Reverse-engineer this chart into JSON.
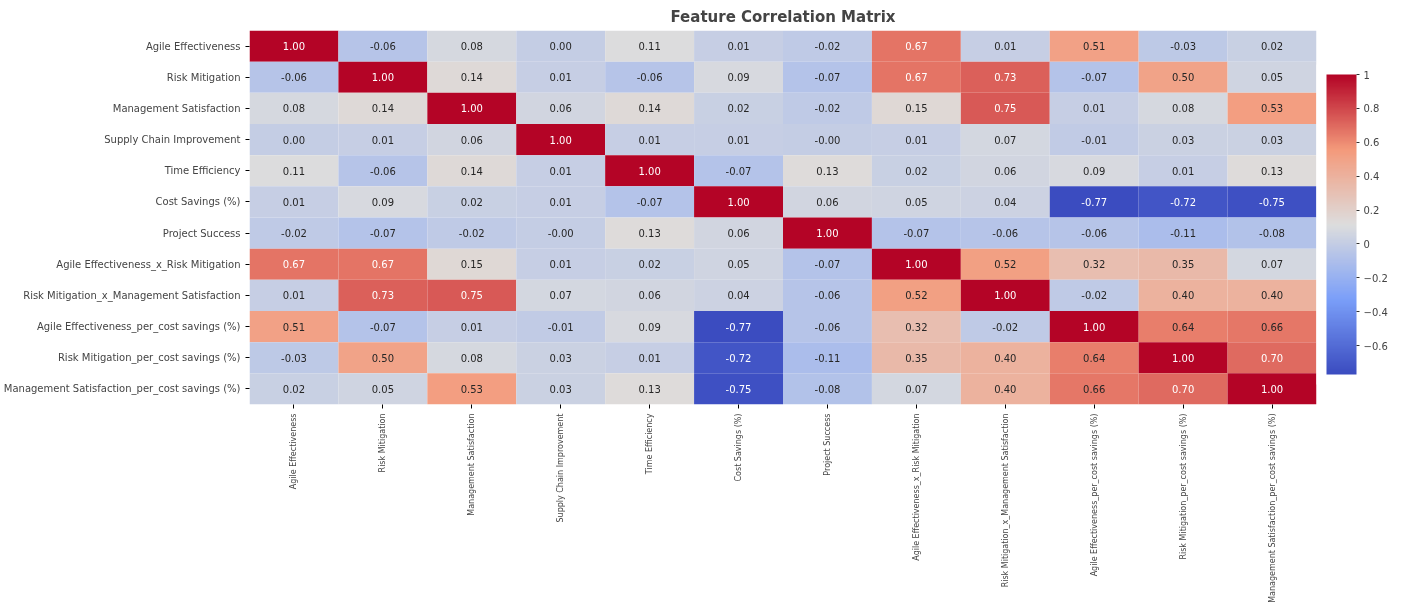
{
  "chart_data": {
    "type": "heatmap",
    "title": "Feature Correlation Matrix",
    "categories": [
      "Agile Effectiveness",
      "Risk Mitigation",
      "Management Satisfaction",
      "Supply Chain Improvement",
      "Time Efficiency",
      "Cost Savings (%)",
      "Project Success",
      "Agile Effectiveness_x_Risk Mitigation",
      "Risk Mitigation_x_Management Satisfaction",
      "Agile Effectiveness_per_cost savings (%)",
      "Risk Mitigation_per_cost savings (%)",
      "Management Satisfaction_per_cost savings (%)"
    ],
    "y_categories": [
      "Agile Effectiveness",
      "Risk Mitigation",
      "Management Satisfaction",
      "Supply Chain Improvement",
      "Time Efficiency",
      "Cost Savings (%)",
      "Project Success",
      "Agile Effectiveness_x_Risk Mitigation",
      "Risk Mitigation_x_Management Satisfaction",
      "Agile Effectiveness_per_cost savings (%)",
      "Risk Mitigation_per_cost savings (%)",
      "Management Satisfaction_per_cost savings (%)"
    ],
    "cells": [
      [
        1.0,
        -0.06,
        0.08,
        0.0,
        0.11,
        0.01,
        -0.02,
        0.67,
        0.01,
        0.51,
        -0.03,
        0.02
      ],
      [
        -0.06,
        1.0,
        0.14,
        0.01,
        -0.06,
        0.09,
        -0.07,
        0.67,
        0.73,
        -0.07,
        0.5,
        0.05
      ],
      [
        0.08,
        0.14,
        1.0,
        0.06,
        0.14,
        0.02,
        -0.02,
        0.15,
        0.75,
        0.01,
        0.08,
        0.53
      ],
      [
        0.0,
        0.01,
        0.06,
        1.0,
        0.01,
        0.01,
        0.0,
        0.01,
        0.07,
        -0.01,
        0.03,
        0.03
      ],
      [
        0.11,
        -0.06,
        0.14,
        0.01,
        1.0,
        -0.07,
        0.13,
        0.02,
        0.06,
        0.09,
        0.01,
        0.13
      ],
      [
        0.01,
        0.09,
        0.02,
        0.01,
        -0.07,
        1.0,
        0.06,
        0.05,
        0.04,
        -0.77,
        -0.72,
        -0.75
      ],
      [
        -0.02,
        -0.07,
        -0.02,
        0.0,
        0.13,
        0.06,
        1.0,
        -0.07,
        -0.06,
        -0.06,
        -0.11,
        -0.08
      ],
      [
        0.67,
        0.67,
        0.15,
        0.01,
        0.02,
        0.05,
        -0.07,
        1.0,
        0.52,
        0.32,
        0.35,
        0.07
      ],
      [
        0.01,
        0.73,
        0.75,
        0.07,
        0.06,
        0.04,
        -0.06,
        0.52,
        1.0,
        -0.02,
        0.4,
        0.4
      ],
      [
        0.51,
        -0.07,
        0.01,
        -0.01,
        0.09,
        -0.77,
        -0.06,
        0.32,
        -0.02,
        1.0,
        0.64,
        0.66
      ],
      [
        -0.03,
        0.5,
        0.08,
        0.03,
        0.01,
        -0.72,
        -0.11,
        0.35,
        0.4,
        0.64,
        1.0,
        0.7
      ],
      [
        0.02,
        0.05,
        0.53,
        0.03,
        0.13,
        -0.75,
        -0.08,
        0.07,
        0.4,
        0.66,
        0.7,
        1.0
      ]
    ],
    "cell_labels": [
      [
        "1.00",
        "-0.06",
        "0.08",
        "0.00",
        "0.11",
        "0.01",
        "-0.02",
        "0.67",
        "0.01",
        "0.51",
        "-0.03",
        "0.02"
      ],
      [
        "-0.06",
        "1.00",
        "0.14",
        "0.01",
        "-0.06",
        "0.09",
        "-0.07",
        "0.67",
        "0.73",
        "-0.07",
        "0.50",
        "0.05"
      ],
      [
        "0.08",
        "0.14",
        "1.00",
        "0.06",
        "0.14",
        "0.02",
        "-0.02",
        "0.15",
        "0.75",
        "0.01",
        "0.08",
        "0.53"
      ],
      [
        "0.00",
        "0.01",
        "0.06",
        "1.00",
        "0.01",
        "0.01",
        "-0.00",
        "0.01",
        "0.07",
        "-0.01",
        "0.03",
        "0.03"
      ],
      [
        "0.11",
        "-0.06",
        "0.14",
        "0.01",
        "1.00",
        "-0.07",
        "0.13",
        "0.02",
        "0.06",
        "0.09",
        "0.01",
        "0.13"
      ],
      [
        "0.01",
        "0.09",
        "0.02",
        "0.01",
        "-0.07",
        "1.00",
        "0.06",
        "0.05",
        "0.04",
        "-0.77",
        "-0.72",
        "-0.75"
      ],
      [
        "-0.02",
        "-0.07",
        "-0.02",
        "-0.00",
        "0.13",
        "0.06",
        "1.00",
        "-0.07",
        "-0.06",
        "-0.06",
        "-0.11",
        "-0.08"
      ],
      [
        "0.67",
        "0.67",
        "0.15",
        "0.01",
        "0.02",
        "0.05",
        "-0.07",
        "1.00",
        "0.52",
        "0.32",
        "0.35",
        "0.07"
      ],
      [
        "0.01",
        "0.73",
        "0.75",
        "0.07",
        "0.06",
        "0.04",
        "-0.06",
        "0.52",
        "1.00",
        "-0.02",
        "0.40",
        "0.40"
      ],
      [
        "0.51",
        "-0.07",
        "0.01",
        "-0.01",
        "0.09",
        "-0.77",
        "-0.06",
        "0.32",
        "-0.02",
        "1.00",
        "0.64",
        "0.66"
      ],
      [
        "-0.03",
        "0.50",
        "0.08",
        "0.03",
        "0.01",
        "-0.72",
        "-0.11",
        "0.35",
        "0.40",
        "0.64",
        "1.00",
        "0.70"
      ],
      [
        "0.02",
        "0.05",
        "0.53",
        "0.03",
        "0.13",
        "-0.75",
        "-0.08",
        "0.07",
        "0.40",
        "0.66",
        "0.70",
        "1.00"
      ]
    ],
    "clim": [
      -0.77,
      1.0
    ],
    "cticks": [
      {
        "value": -0.6,
        "label": "−0.6"
      },
      {
        "value": -0.4,
        "label": "−0.4"
      },
      {
        "value": -0.2,
        "label": "−0.2"
      },
      0.0,
      0.2,
      0.4,
      0.6,
      0.8,
      1.0
    ]
  }
}
